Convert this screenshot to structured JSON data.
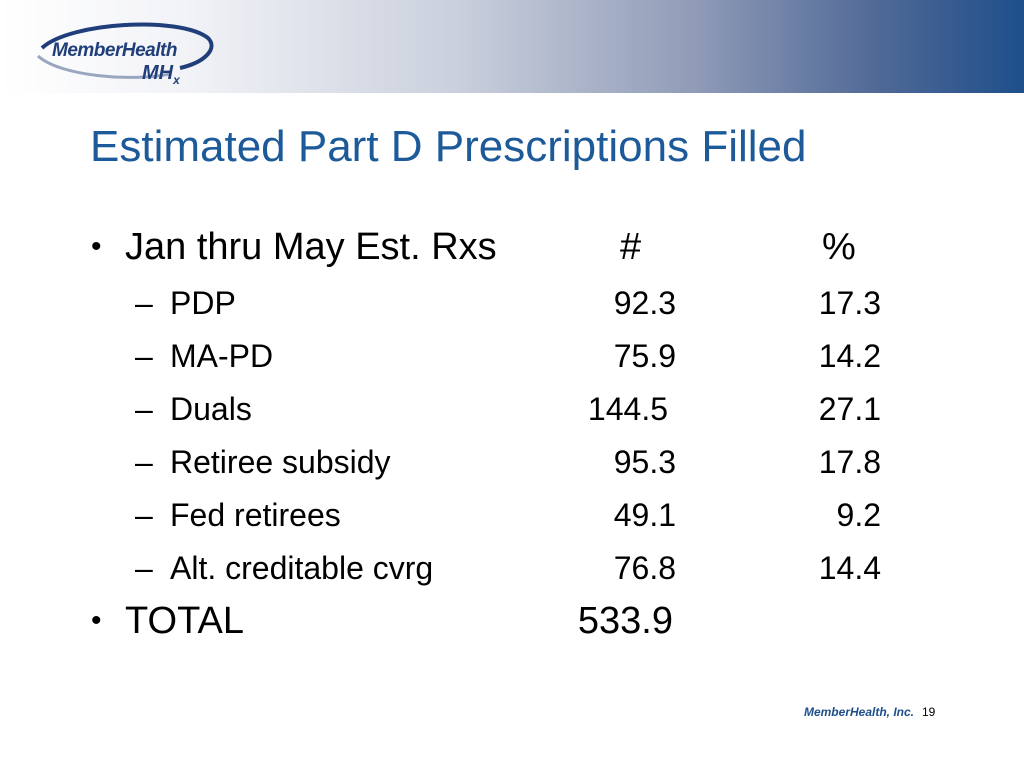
{
  "header": {
    "logo_text": "MemberHealth",
    "logo_mark": "MH",
    "logo_mark_sub": "x"
  },
  "slide": {
    "title": "Estimated Part D Prescriptions Filled",
    "heading_row": {
      "bullet": "•",
      "label": "Jan thru May Est. Rxs",
      "col_hash": "#",
      "col_pct": "%"
    },
    "rows": [
      {
        "label": "PDP",
        "num": "92.3",
        "pct": "17.3"
      },
      {
        "label": "MA-PD",
        "num": "75.9",
        "pct": "14.2"
      },
      {
        "label": "Duals",
        "num": "144.5",
        "pct": "27.1"
      },
      {
        "label": "Retiree subsidy",
        "num": "95.3",
        "pct": "17.8"
      },
      {
        "label": "Fed retirees",
        "num": "49.1",
        "pct": "9.2"
      },
      {
        "label": "Alt. creditable cvrg",
        "num": "76.8",
        "pct": "14.4"
      }
    ],
    "dash": "–",
    "total": {
      "bullet": "•",
      "label": "TOTAL",
      "num": "533.9"
    }
  },
  "footer": {
    "company": "MemberHealth, Inc.",
    "page_number": "19"
  },
  "colors": {
    "title": "#1d5a9a",
    "header_gradient_end": "#1e4f8a",
    "logo": "#1f3e7a"
  }
}
